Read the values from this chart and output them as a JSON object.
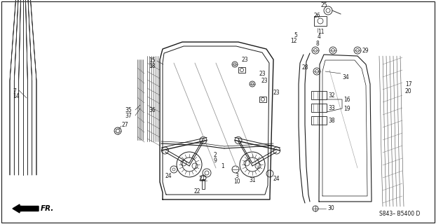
{
  "bg_color": "#ffffff",
  "diagram_code": "S843– B5400 D",
  "label_fontsize": 5.5,
  "code_fontsize": 5.5,
  "fr_fontsize": 7.5,
  "line_color": "#1a1a1a",
  "gray_color": "#555555"
}
